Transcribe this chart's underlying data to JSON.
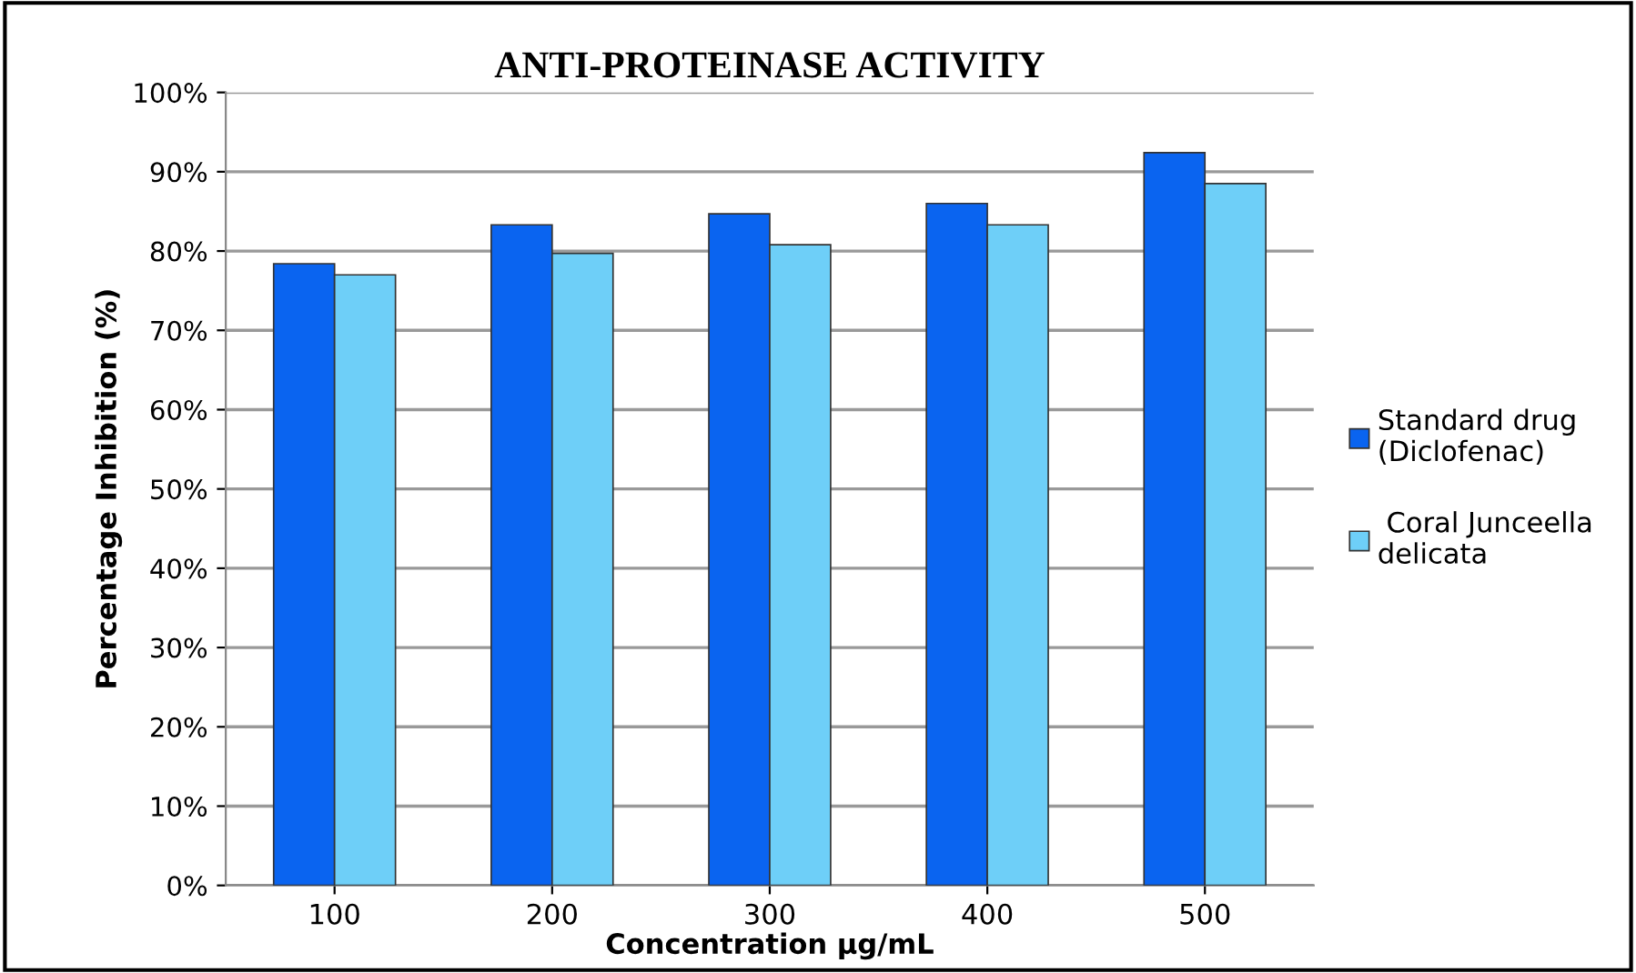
{
  "chart_data": {
    "type": "bar",
    "title": "ANTI-PROTEINASE ACTIVITY",
    "xlabel": "Concentration µg/mL",
    "ylabel": "Percentage Inhibition (%)",
    "categories": [
      "100",
      "200",
      "300",
      "400",
      "500"
    ],
    "series": [
      {
        "name": "Standard drug\n(Diclofenac)",
        "color": "#0a64f0",
        "values": [
          78.4,
          83.3,
          84.7,
          86.0,
          92.4
        ]
      },
      {
        "name": " Coral Junceella\ndelicata",
        "color": "#6ecff8",
        "values": [
          77.0,
          79.7,
          80.8,
          83.3,
          88.5
        ]
      }
    ],
    "ylim": [
      0,
      100
    ],
    "yticks": [
      {
        "value": 0,
        "label": "0%"
      },
      {
        "value": 10,
        "label": "10%"
      },
      {
        "value": 20,
        "label": "20%"
      },
      {
        "value": 30,
        "label": "30%"
      },
      {
        "value": 40,
        "label": "40%"
      },
      {
        "value": 50,
        "label": "50%"
      },
      {
        "value": 60,
        "label": "60%"
      },
      {
        "value": 70,
        "label": "70%"
      },
      {
        "value": 80,
        "label": "80%"
      },
      {
        "value": 90,
        "label": "90%"
      },
      {
        "value": 100,
        "label": "100%"
      }
    ],
    "grid": "y",
    "legend": "right"
  }
}
